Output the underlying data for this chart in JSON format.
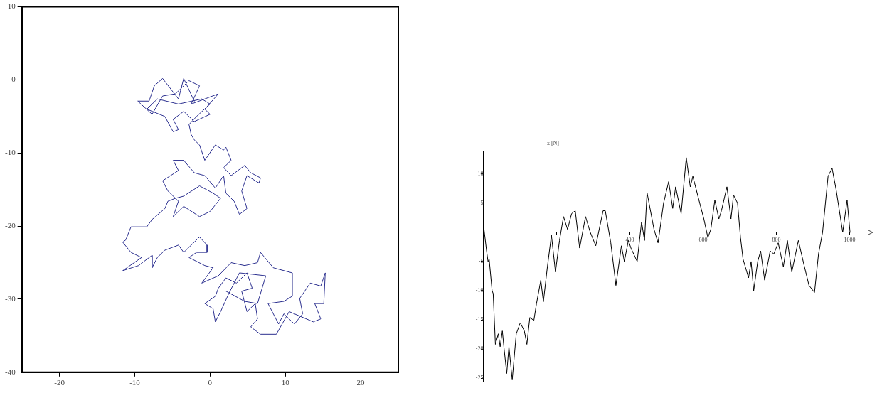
{
  "chart_data": [
    {
      "type": "line",
      "xlim": [
        -25,
        25
      ],
      "ylim": [
        -40,
        10
      ],
      "xticks": [
        -20,
        -10,
        0,
        10,
        20
      ],
      "yticks": [
        -40,
        -30,
        -20,
        -10,
        0,
        10
      ],
      "grid": false,
      "series": [
        {
          "color": "#2b2f8f",
          "x": [
            -2.1,
            -3.5,
            -4.2,
            -6.3,
            -7.4,
            -8.1,
            -9.6,
            -7.7,
            -6.3,
            -4.6,
            -2.8,
            -1.4,
            -2.5,
            1.1,
            -0.7,
            0,
            -2.1,
            -3.5,
            -4.9,
            -4.2,
            -4.9,
            -6.0,
            -8.4,
            -7.0,
            -4.2,
            -1.1,
            0,
            -1.8,
            -2.8,
            -2.5,
            -2.1,
            -1.4,
            -0.7,
            0.7,
            1.8,
            2.1,
            2.8,
            1.8,
            2.8,
            4.6,
            5.4,
            6.7,
            6.5,
            4.9,
            4.2,
            4.9,
            3.9,
            3.2,
            2.1,
            1.8,
            0.7,
            -0.7,
            -2.1,
            -3.5,
            -4.9,
            -4.2,
            -6.3,
            -5.6,
            -4.2,
            -4.9,
            -3.5,
            -1.4,
            0,
            1.4,
            0.4,
            -1.4,
            -3.5,
            -4.6,
            -5.6,
            -6.0,
            -7.7,
            -8.4,
            -10.5,
            -11.2,
            -11.6,
            -10.5,
            -9.1,
            -11.6,
            -9.5,
            -7.7,
            -7.7,
            -7.0,
            -6.0,
            -4.2,
            -3.5,
            -1.4,
            -0.4,
            -0.4,
            -1.8,
            -2.8,
            -0.7,
            0.4,
            -1.1,
            1.1,
            2.8,
            4.6,
            6.3,
            6.7,
            8.4,
            10.9,
            10.9,
            9.8,
            7.7,
            9.1,
            9.8,
            11.2,
            12.3,
            11.9,
            13.3,
            14.7,
            15.3,
            15.1,
            13.9,
            14.7,
            13.7,
            10.5,
            8.8,
            6.7,
            5.4,
            6.3,
            6.0,
            4.9,
            4.2,
            5.6,
            4.9,
            3.5,
            2.1,
            1.1,
            0.7,
            -0.7,
            0.4,
            0.7,
            1.4,
            2.5,
            3.9,
            7.4,
            6.3,
            4.6,
            2.1
          ],
          "values": [
            -2.9,
            0.2,
            -2.6,
            0.2,
            -0.8,
            -2.9,
            -2.9,
            -4.7,
            -2.2,
            -1.9,
            -0.1,
            -0.8,
            -3.3,
            -1.9,
            -4.0,
            -4.7,
            -5.7,
            -4.3,
            -5.4,
            -6.8,
            -7.1,
            -5.0,
            -4.0,
            -2.6,
            -3.3,
            -2.6,
            -3.3,
            -5.0,
            -6.1,
            -7.5,
            -8.2,
            -8.9,
            -11.0,
            -8.9,
            -9.6,
            -9.2,
            -11.0,
            -12.0,
            -13.1,
            -11.7,
            -12.7,
            -13.4,
            -14.1,
            -13.1,
            -15.2,
            -17.6,
            -18.4,
            -16.6,
            -15.5,
            -13.1,
            -14.8,
            -13.1,
            -12.7,
            -11.0,
            -11.0,
            -12.4,
            -13.8,
            -15.2,
            -16.6,
            -18.7,
            -17.3,
            -18.7,
            -18.0,
            -16.2,
            -15.5,
            -14.5,
            -15.9,
            -16.2,
            -16.6,
            -17.6,
            -19.1,
            -20.1,
            -20.1,
            -21.9,
            -22.2,
            -23.6,
            -24.3,
            -26.1,
            -25.4,
            -24.0,
            -25.7,
            -24.3,
            -23.3,
            -22.6,
            -23.6,
            -21.5,
            -22.6,
            -23.6,
            -23.6,
            -24.3,
            -25.4,
            -25.7,
            -27.8,
            -26.8,
            -25.0,
            -25.4,
            -25.0,
            -23.6,
            -25.7,
            -26.4,
            -29.6,
            -30.3,
            -30.6,
            -33.4,
            -32.0,
            -33.4,
            -32.0,
            -29.9,
            -27.8,
            -28.2,
            -26.4,
            -30.6,
            -30.6,
            -32.7,
            -33.1,
            -31.7,
            -34.8,
            -34.8,
            -33.8,
            -32.7,
            -30.6,
            -31.7,
            -28.9,
            -28.5,
            -26.4,
            -27.8,
            -27.1,
            -28.5,
            -29.6,
            -30.6,
            -31.3,
            -33.1,
            -31.7,
            -29.2,
            -26.4,
            -26.8,
            -30.6,
            -30.3,
            -28.9
          ]
        }
      ]
    },
    {
      "type": "line",
      "ylabel": "x [N]",
      "xlim": [
        -30,
        1030
      ],
      "ylim": [
        -25.5,
        14
      ],
      "xticks": [
        {
          "value": 200,
          "label": null
        },
        400,
        600,
        800,
        1000
      ],
      "yticks": [
        -25,
        -20,
        -15,
        -10,
        -5,
        5,
        10
      ],
      "grid": false,
      "series": [
        {
          "color": "#000000",
          "x": [
            0,
            1,
            9,
            13,
            16,
            24,
            27,
            33,
            41,
            46,
            52,
            57,
            64,
            70,
            79,
            90,
            101,
            112,
            119,
            127,
            138,
            145,
            157,
            164,
            175,
            186,
            197,
            208,
            219,
            230,
            241,
            251,
            263,
            279,
            292,
            307,
            327,
            333,
            348,
            362,
            377,
            385,
            396,
            403,
            420,
            432,
            440,
            447,
            466,
            477,
            492,
            506,
            517,
            525,
            540,
            554,
            565,
            572,
            587,
            602,
            613,
            621,
            632,
            643,
            650,
            665,
            676,
            683,
            694,
            702,
            709,
            724,
            731,
            738,
            749,
            757,
            768,
            783,
            793,
            805,
            819,
            830,
            842,
            860,
            875,
            889,
            904,
            915,
            926,
            941,
            952,
            963,
            981,
            993,
            1001
          ],
          "values": [
            0,
            1,
            -3.2,
            -5,
            -4.6,
            -10,
            -10.5,
            -19.2,
            -17.4,
            -19.6,
            -16.9,
            -20.1,
            -24.2,
            -19.6,
            -25.3,
            -17.4,
            -15.5,
            -16.9,
            -19.2,
            -14.6,
            -15.1,
            -12.3,
            -8.2,
            -11.9,
            -5.9,
            -0.5,
            -6.8,
            -1.4,
            2.7,
            0.5,
            3.2,
            3.7,
            -2.7,
            2.7,
            0,
            -2.3,
            3.7,
            3.7,
            -1.8,
            -9.1,
            -2.3,
            -5,
            -1.4,
            -2.7,
            -5,
            1.8,
            -1.4,
            6.8,
            0.5,
            -1.8,
            5,
            8.7,
            4.1,
            7.8,
            3.2,
            12.8,
            7.8,
            9.6,
            5.9,
            2.3,
            -0.9,
            0.5,
            5.5,
            2.3,
            3.7,
            7.8,
            2.3,
            6.4,
            5,
            -0.9,
            -4.6,
            -7.8,
            -5,
            -10,
            -5,
            -3.2,
            -8.2,
            -3.2,
            -3.7,
            -1.8,
            -5.9,
            -1.4,
            -6.8,
            -1.4,
            -5.5,
            -9.1,
            -10.3,
            -3.7,
            0,
            9.6,
            11,
            7.3,
            0,
            5.5,
            0
          ]
        }
      ]
    }
  ]
}
